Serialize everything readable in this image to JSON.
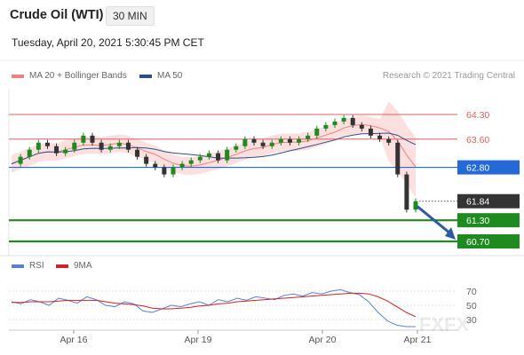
{
  "header": {
    "instrument": "Crude Oil (WTI)",
    "interval": "30 MIN",
    "timestamp": "Tuesday, April 20, 2021 5:30:45 PM CET"
  },
  "legend": {
    "ma20": "MA 20 + Bollinger Bands",
    "ma20_color": "#f08080",
    "ma50": "MA 50",
    "ma50_color": "#2c4f8c",
    "credit": "Research © 2021 Trading Central"
  },
  "rsi_legend": {
    "rsi": "RSI",
    "rsi_color": "#5b7fd6",
    "ma": "9MA",
    "ma_color": "#d42020"
  },
  "watermark": "FXFX",
  "chart_data": [
    {
      "type": "line",
      "x_ticks": [
        "Apr 16",
        "Apr 19",
        "Apr 20",
        "Apr 21"
      ],
      "ylim": [
        60.7,
        64.3
      ],
      "levels": [
        {
          "value": 64.3,
          "label": "64.30",
          "color": "#e06060",
          "kind": "resistance"
        },
        {
          "value": 63.6,
          "label": "63.60",
          "color": "#e06060",
          "kind": "resistance"
        },
        {
          "value": 62.8,
          "label": "62.80",
          "color": "#2469d6",
          "kind": "pivot"
        },
        {
          "value": 61.3,
          "label": "61.30",
          "color": "#1f8a1f",
          "kind": "target"
        },
        {
          "value": 60.7,
          "label": "60.70",
          "color": "#1f8a1f",
          "kind": "target"
        }
      ],
      "last_price": {
        "value": 61.84,
        "label": "61.84"
      },
      "series": [
        {
          "name": "MA 20 + Bollinger Bands",
          "color": "#f08080"
        },
        {
          "name": "MA 50",
          "color": "#2c4f8c"
        }
      ],
      "price_path": [
        62.9,
        63.1,
        63.3,
        63.5,
        63.4,
        63.2,
        63.3,
        63.5,
        63.7,
        63.5,
        63.3,
        63.4,
        63.5,
        63.3,
        63.1,
        62.9,
        62.8,
        62.6,
        62.8,
        62.9,
        63.0,
        63.1,
        63.2,
        63.0,
        63.3,
        63.4,
        63.6,
        63.5,
        63.4,
        63.5,
        63.6,
        63.5,
        63.6,
        63.7,
        63.9,
        64.0,
        64.1,
        64.2,
        64.0,
        63.9,
        63.7,
        63.6,
        63.5,
        62.6,
        61.6,
        61.84
      ]
    },
    {
      "type": "line",
      "title": "RSI",
      "y_ticks": [
        "70",
        "50",
        "30"
      ],
      "ylim": [
        20,
        80
      ],
      "series": [
        {
          "name": "RSI",
          "color": "#5b7fd6",
          "values": [
            55,
            52,
            58,
            55,
            50,
            60,
            57,
            53,
            62,
            58,
            50,
            48,
            55,
            52,
            42,
            40,
            45,
            50,
            48,
            52,
            55,
            50,
            58,
            55,
            60,
            57,
            62,
            60,
            58,
            64,
            66,
            63,
            68,
            66,
            70,
            72,
            68,
            65,
            55,
            40,
            28,
            22,
            20,
            20
          ]
        },
        {
          "name": "9MA",
          "color": "#d42020",
          "values": [
            54,
            54,
            55,
            55,
            55,
            56,
            57,
            57,
            57,
            57,
            55,
            53,
            52,
            51,
            49,
            46,
            45,
            45,
            46,
            47,
            49,
            50,
            52,
            53,
            55,
            56,
            57,
            58,
            59,
            60,
            61,
            62,
            63,
            64,
            65,
            66,
            67,
            67,
            66,
            62,
            56,
            48,
            40,
            34
          ]
        }
      ]
    }
  ]
}
